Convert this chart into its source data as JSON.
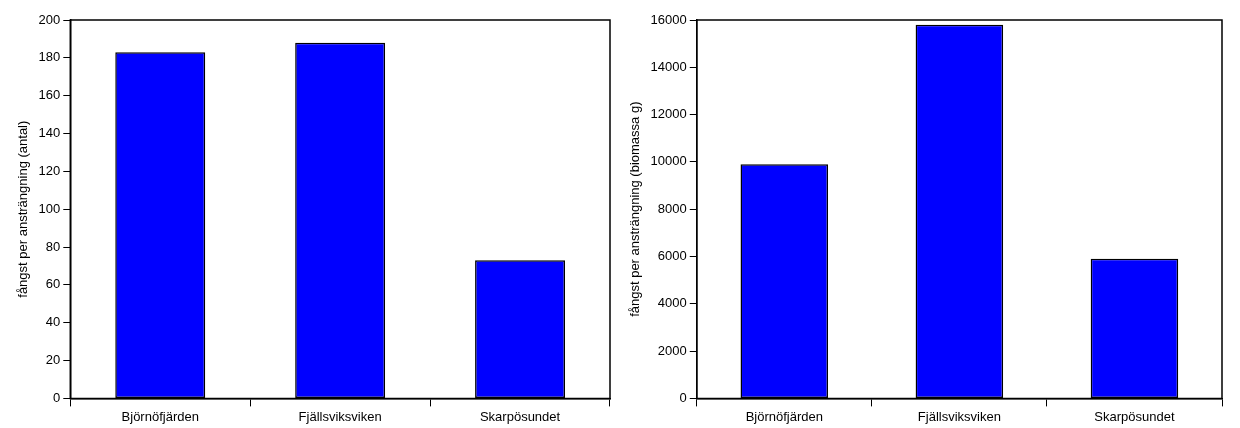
{
  "chart_data": [
    {
      "type": "bar",
      "ylabel": "fångst per ansträngning (antal)",
      "categories": [
        "Björnöfjärden",
        "Fjällsviksviken",
        "Skarpösundet"
      ],
      "values": [
        183,
        188,
        73
      ],
      "color": "#0000ff",
      "ylim": [
        0,
        200
      ],
      "yticks": [
        0,
        20,
        40,
        60,
        80,
        100,
        120,
        140,
        160,
        180,
        200
      ]
    },
    {
      "type": "bar",
      "ylabel": "fångst per ansträngning (biomassa g)",
      "categories": [
        "Björnöfjärden",
        "Fjällsviksviken",
        "Skarpösundet"
      ],
      "values": [
        9900,
        15800,
        5900
      ],
      "color": "#0000ff",
      "ylim": [
        0,
        16000
      ],
      "yticks": [
        0,
        2000,
        4000,
        6000,
        8000,
        10000,
        12000,
        14000,
        16000
      ]
    }
  ]
}
